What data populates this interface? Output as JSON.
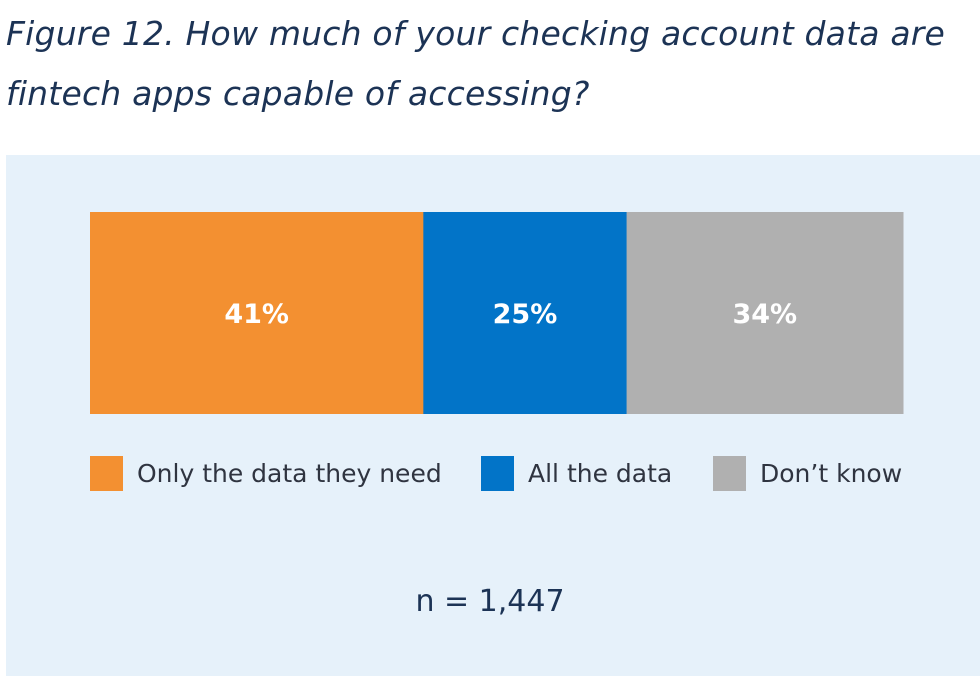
{
  "title_line1": "Figure 12. How much of your checking account data are",
  "title_line2": "fintech apps capable of accessing?",
  "chart_data": {
    "type": "bar",
    "orientation": "horizontal-stacked",
    "categories": [
      "Only the data they need",
      "All the data",
      "Don’t know"
    ],
    "values": [
      41,
      25,
      34
    ],
    "labels": [
      "41%",
      "25%",
      "34%"
    ],
    "colors": [
      "#f39031",
      "#0274c8",
      "#b0b0b0"
    ],
    "legend_position": "bottom",
    "grid": false
  },
  "sample_note": "n = 1,447"
}
